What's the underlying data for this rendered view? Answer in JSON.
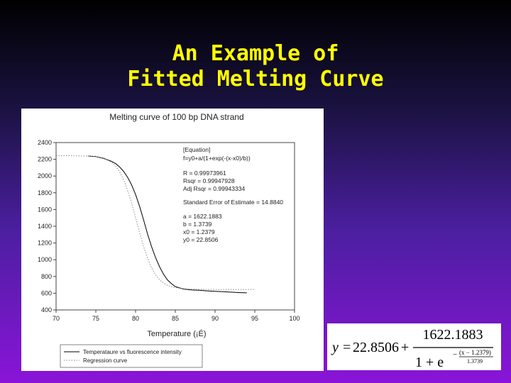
{
  "slide": {
    "title_line1": "An Example of",
    "title_line2": "Fitted Melting Curve"
  },
  "chart_data": {
    "type": "line",
    "title": "Melting curve of 100 bp DNA strand",
    "xlabel": "Temperature (¡É)",
    "ylabel": "",
    "xlim": [
      70,
      100
    ],
    "ylim": [
      400,
      2400
    ],
    "x_ticks": [
      70,
      75,
      80,
      85,
      90,
      95,
      100
    ],
    "y_ticks": [
      400,
      600,
      800,
      1000,
      1200,
      1400,
      1600,
      1800,
      2000,
      2200,
      2400
    ],
    "grid": false,
    "legend_position": "bottom-left",
    "series": [
      {
        "name": "Temperataure vs fluorescence intensity",
        "style": "solid",
        "color": "#000000",
        "x": [
          74,
          75,
          76,
          77,
          77.5,
          78,
          78.5,
          79,
          79.5,
          80,
          80.5,
          81,
          81.5,
          82,
          82.5,
          83,
          83.5,
          84,
          84.5,
          85,
          86,
          87,
          88,
          89,
          90,
          91,
          92,
          93,
          94
        ],
        "y": [
          2239,
          2232,
          2210,
          2175,
          2148,
          2108,
          2055,
          1985,
          1895,
          1780,
          1640,
          1480,
          1310,
          1160,
          1030,
          920,
          830,
          760,
          715,
          680,
          650,
          640,
          635,
          628,
          622,
          618,
          613,
          608,
          604
        ]
      },
      {
        "name": "Regression curve",
        "style": "dotted",
        "color": "#888888",
        "x": [
          70,
          71,
          72,
          73,
          74,
          75,
          76,
          77,
          77.5,
          78,
          78.5,
          79,
          79.5,
          80,
          80.5,
          81,
          81.5,
          82,
          82.5,
          83,
          83.5,
          84,
          84.5,
          85,
          86,
          87,
          88,
          89,
          90,
          91,
          92,
          93,
          94,
          95
        ],
        "y": [
          2243,
          2243,
          2242,
          2241,
          2239,
          2232,
          2214,
          2164,
          2118,
          2050,
          1955,
          1830,
          1677,
          1505,
          1328,
          1162,
          1020,
          907,
          823,
          763,
          722,
          695,
          678,
          666,
          654,
          649,
          646,
          645,
          645,
          645,
          645,
          645,
          645,
          645
        ]
      }
    ],
    "annotation": {
      "header": "[Equation]",
      "lines": [
        "f=y0+a/(1+exp(-(x-x0)/b))",
        "R = 0.99973961",
        "Rsqr = 0.99947928",
        "Adj Rsqr = 0.99943334",
        "Standard Error of Estimate = 14.8840",
        "a = 1622.1883",
        "b = 1.3739",
        "x0 = 1.2379",
        "y0 = 22.8506"
      ]
    }
  },
  "formula": {
    "lhs": "y",
    "equals": "=",
    "y0": "22.8506",
    "plus": "+",
    "numerator": "1622.1883",
    "denominator": "1 + e",
    "exp_sign": "−",
    "exp_numerator": "(x − 1.2379)",
    "exp_denominator": "1.3739"
  }
}
